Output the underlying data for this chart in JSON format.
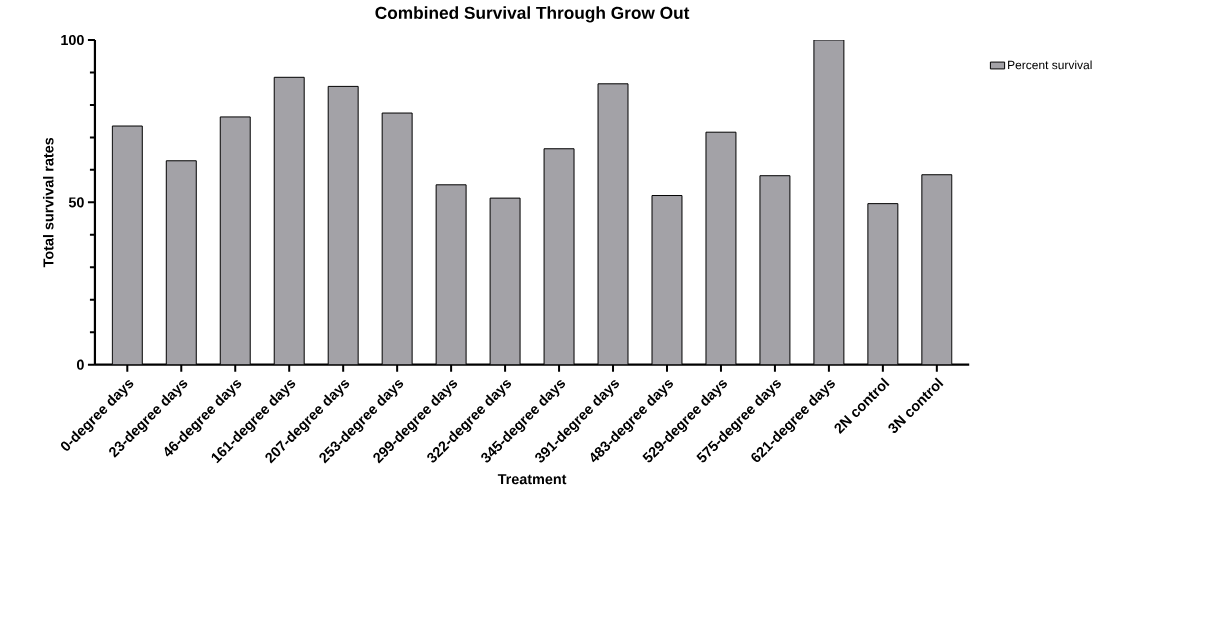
{
  "chart_data": {
    "type": "bar",
    "title": "Combined Survival Through Grow Out",
    "xlabel": "Treatment",
    "ylabel": "Total survival rates",
    "categories": [
      "0-degree days",
      "23-degree days",
      "46-degree days",
      "161-degree days",
      "207-degree days",
      "253-degree days",
      "299-degree days",
      "322-degree days",
      "345-degree days",
      "391-degree days",
      "483-degree days",
      "529-degree days",
      "575-degree days",
      "621-degree days",
      "2N control",
      "3N control"
    ],
    "series": [
      {
        "name": "Percent survival",
        "color": "#a3a2a7",
        "values": [
          73.5,
          62.8,
          76.3,
          88.5,
          85.7,
          77.5,
          55.4,
          51.3,
          66.5,
          86.5,
          52.1,
          71.6,
          58.2,
          100,
          49.6,
          58.5
        ]
      }
    ],
    "ylim": [
      0,
      100
    ],
    "yticks": [
      0,
      50,
      100
    ],
    "grid": false,
    "legend": "right"
  }
}
